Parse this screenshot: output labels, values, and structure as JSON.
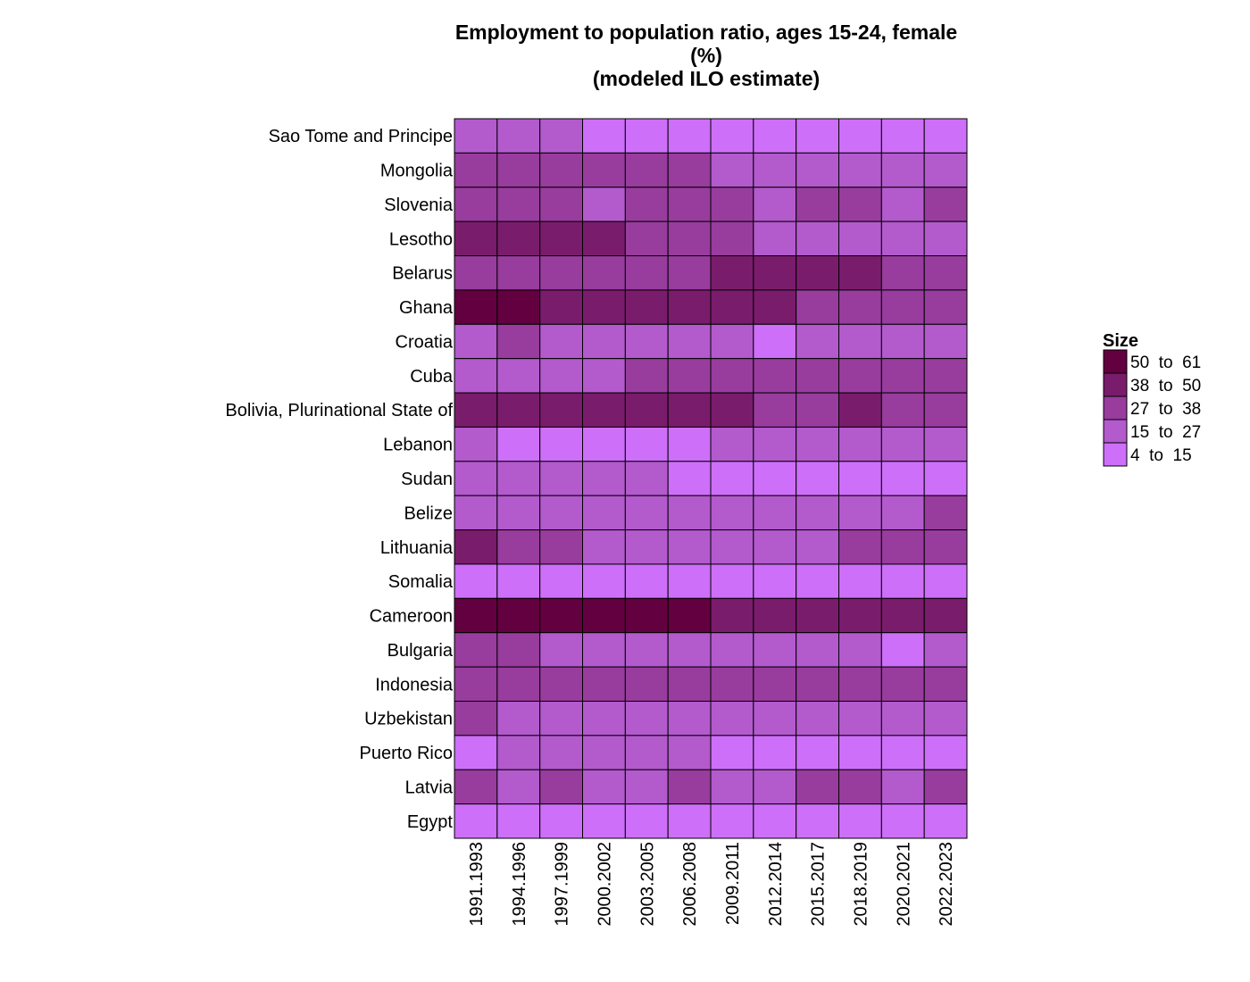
{
  "chart_data": {
    "type": "heatmap",
    "title_lines": [
      "Employment to population ratio, ages 15-24, female",
      "(%)",
      "(modeled ILO estimate)"
    ],
    "rows": [
      "Sao Tome and Principe",
      "Mongolia",
      "Slovenia",
      "Lesotho",
      "Belarus",
      "Ghana",
      "Croatia",
      "Cuba",
      "Bolivia, Plurinational State of",
      "Lebanon",
      "Sudan",
      "Belize",
      "Lithuania",
      "Somalia",
      "Cameroon",
      "Bulgaria",
      "Indonesia",
      "Uzbekistan",
      "Puerto Rico",
      "Latvia",
      "Egypt"
    ],
    "columns": [
      "1991.1993",
      "1994.1996",
      "1997.1999",
      "2000.2002",
      "2003.2005",
      "2006.2008",
      "2009.2011",
      "2012.2014",
      "2015.2017",
      "2018.2019",
      "2020.2021",
      "2022.2023"
    ],
    "value_bins": [
      "4 to 15",
      "15 to 27",
      "27 to 38",
      "38 to 50",
      "50 to 61"
    ],
    "bin_index_matrix": [
      [
        1,
        1,
        1,
        0,
        0,
        0,
        0,
        0,
        0,
        0,
        0,
        0
      ],
      [
        2,
        2,
        2,
        2,
        2,
        2,
        1,
        1,
        1,
        1,
        1,
        1
      ],
      [
        2,
        2,
        2,
        1,
        2,
        2,
        2,
        1,
        2,
        2,
        1,
        2
      ],
      [
        3,
        3,
        3,
        3,
        2,
        2,
        2,
        1,
        1,
        1,
        1,
        1
      ],
      [
        2,
        2,
        2,
        2,
        2,
        2,
        3,
        3,
        3,
        3,
        2,
        2
      ],
      [
        4,
        4,
        3,
        3,
        3,
        3,
        3,
        3,
        2,
        2,
        2,
        2
      ],
      [
        1,
        2,
        1,
        1,
        1,
        1,
        1,
        0,
        1,
        1,
        1,
        1
      ],
      [
        1,
        1,
        1,
        1,
        2,
        2,
        2,
        2,
        2,
        2,
        2,
        2
      ],
      [
        3,
        3,
        3,
        3,
        3,
        3,
        3,
        2,
        2,
        3,
        2,
        2
      ],
      [
        1,
        0,
        0,
        0,
        0,
        0,
        1,
        1,
        1,
        1,
        1,
        1
      ],
      [
        1,
        1,
        1,
        1,
        1,
        0,
        0,
        0,
        0,
        0,
        0,
        0
      ],
      [
        1,
        1,
        1,
        1,
        1,
        1,
        1,
        1,
        1,
        1,
        1,
        2
      ],
      [
        3,
        2,
        2,
        1,
        1,
        1,
        1,
        1,
        1,
        2,
        2,
        2
      ],
      [
        0,
        0,
        0,
        0,
        0,
        0,
        0,
        0,
        0,
        0,
        0,
        0
      ],
      [
        4,
        4,
        4,
        4,
        4,
        4,
        3,
        3,
        3,
        3,
        3,
        3
      ],
      [
        2,
        2,
        1,
        1,
        1,
        1,
        1,
        1,
        1,
        1,
        0,
        1
      ],
      [
        2,
        2,
        2,
        2,
        2,
        2,
        2,
        2,
        2,
        2,
        2,
        2
      ],
      [
        2,
        1,
        1,
        1,
        1,
        1,
        1,
        1,
        1,
        1,
        1,
        1
      ],
      [
        0,
        1,
        1,
        1,
        1,
        1,
        0,
        0,
        0,
        0,
        0,
        0
      ],
      [
        2,
        1,
        2,
        1,
        1,
        2,
        1,
        1,
        2,
        2,
        1,
        2
      ],
      [
        0,
        0,
        0,
        0,
        0,
        0,
        0,
        0,
        0,
        0,
        0,
        0
      ]
    ],
    "colors": {
      "4 to 15": "#cd6ff9",
      "15 to 27": "#b35acd",
      "27 to 38": "#983c9e",
      "38 to 50": "#7a1c6c",
      "50 to 61": "#63003f",
      "cell_border": "#000000"
    },
    "legend": {
      "title": "Size",
      "order": [
        "50 to 61",
        "38 to 50",
        "27 to 38",
        "15 to 27",
        "4 to 15"
      ],
      "position": "right",
      "labels": {
        "50 to 61": "50  to  61",
        "38 to 50": "38  to  50",
        "27 to 38": "27  to  38",
        "15 to 27": "15  to  27",
        "4 to 15": "4  to  15"
      }
    },
    "grid": false
  }
}
